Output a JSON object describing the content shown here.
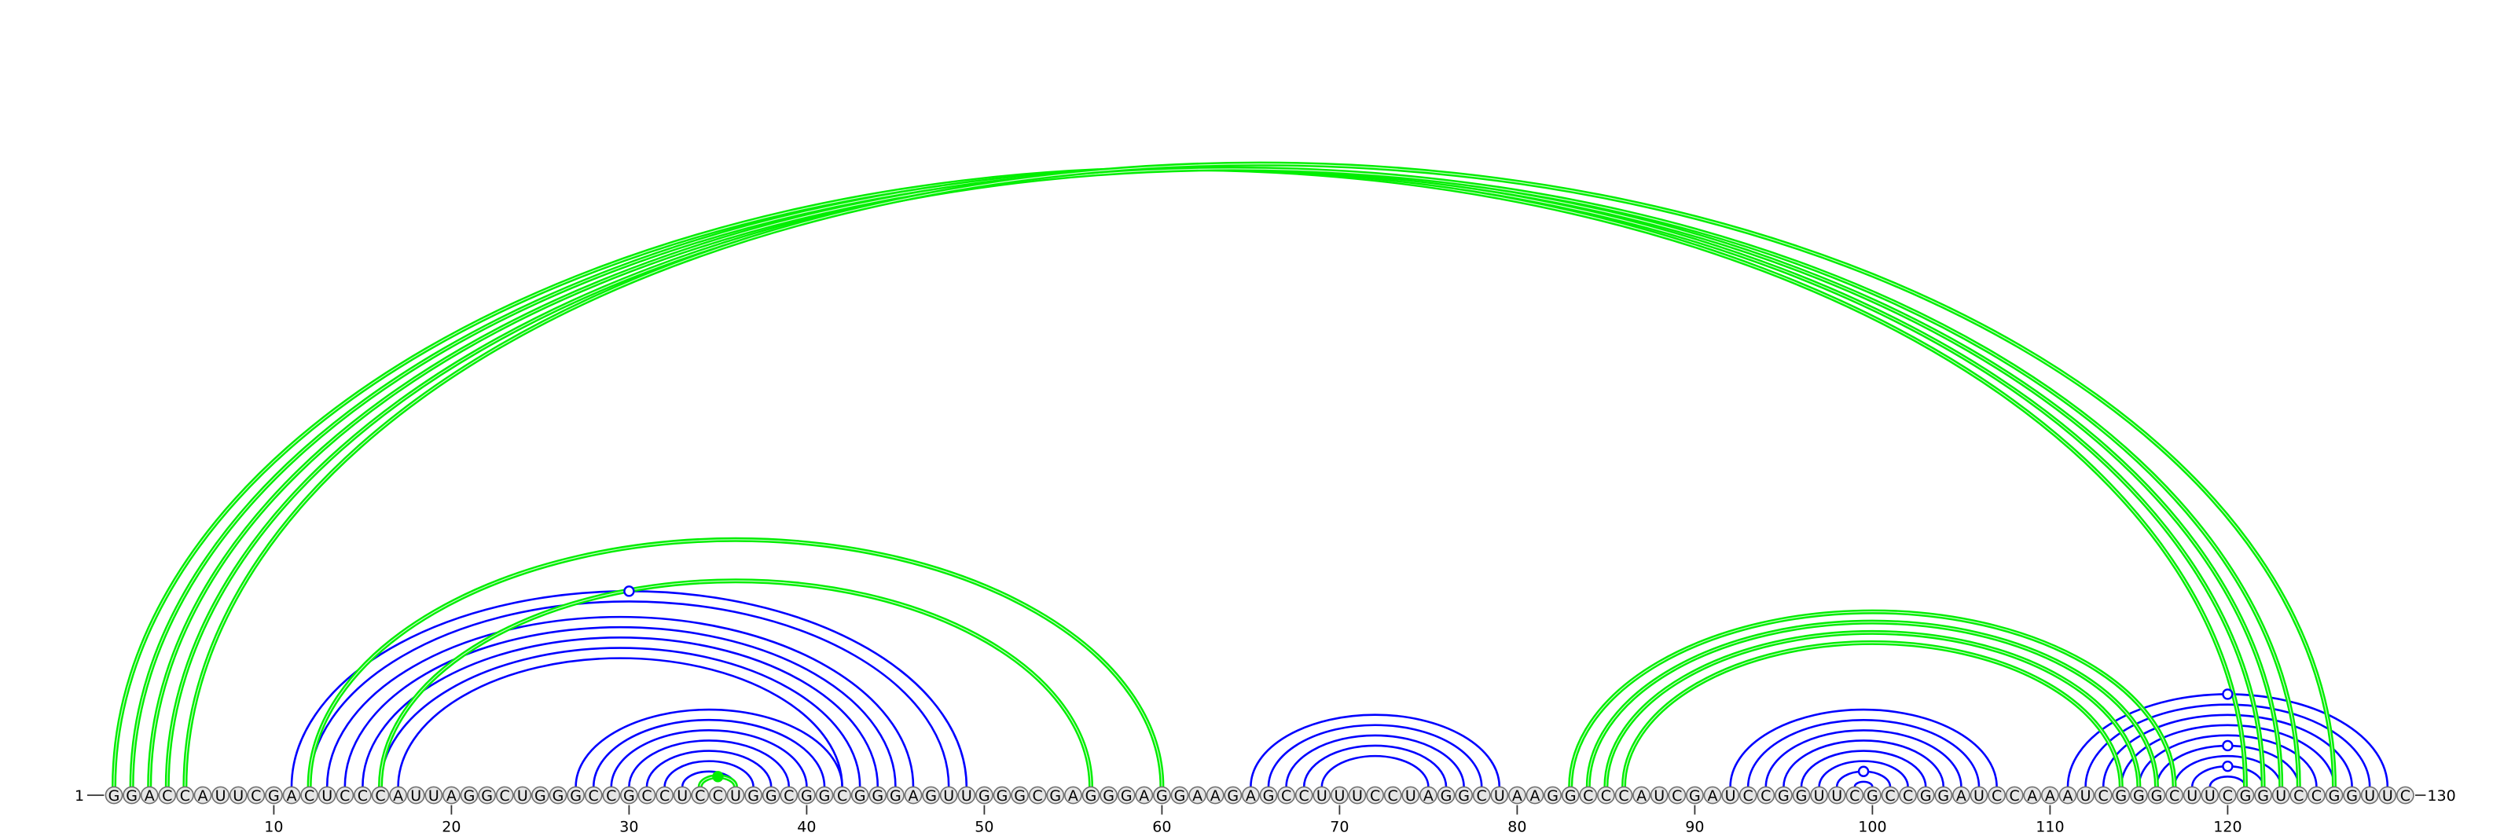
{
  "sequence": "GGACCAUUCGACUCCCAUUAGGCUGGGCCGCCUCCUGGCGGCGGGAGUUGGGCGAGGGAGGAAGAGCCUUUCCUAGGCUAAGGCCCAUCGAUCCGGUUCGCCGGAUCCAAAUCGGGCUUCGGUCCGGUUC",
  "start_label": "1",
  "end_label": "130",
  "axis_ticks": [
    "10",
    "20",
    "30",
    "40",
    "50",
    "60",
    "70",
    "80",
    "90",
    "100",
    "110",
    "120"
  ],
  "colors": {
    "arc_blue": "#0000ff",
    "arc_green": "#00ee00",
    "node_fill": "#e6e6e6",
    "node_stroke": "#707070",
    "text": "#000000"
  },
  "arcs": [
    {
      "i": 1,
      "j": 121,
      "color": "green"
    },
    {
      "i": 2,
      "j": 122,
      "color": "green"
    },
    {
      "i": 3,
      "j": 123,
      "color": "green"
    },
    {
      "i": 4,
      "j": 124,
      "color": "green"
    },
    {
      "i": 5,
      "j": 126,
      "color": "green"
    },
    {
      "i": 12,
      "j": 60,
      "color": "green"
    },
    {
      "i": 16,
      "j": 56,
      "color": "green"
    },
    {
      "i": 34,
      "j": 36,
      "color": "green"
    },
    {
      "i": 83,
      "j": 117,
      "color": "green"
    },
    {
      "i": 84,
      "j": 116,
      "color": "green"
    },
    {
      "i": 85,
      "j": 115,
      "color": "green"
    },
    {
      "i": 86,
      "j": 114,
      "color": "green"
    },
    {
      "i": 11,
      "j": 49,
      "color": "blue"
    },
    {
      "i": 12,
      "j": 48,
      "color": "blue"
    },
    {
      "i": 13,
      "j": 46,
      "color": "blue"
    },
    {
      "i": 14,
      "j": 45,
      "color": "blue"
    },
    {
      "i": 15,
      "j": 44,
      "color": "blue"
    },
    {
      "i": 16,
      "j": 43,
      "color": "blue"
    },
    {
      "i": 17,
      "j": 42,
      "color": "blue"
    },
    {
      "i": 27,
      "j": 42,
      "color": "blue"
    },
    {
      "i": 28,
      "j": 41,
      "color": "blue"
    },
    {
      "i": 29,
      "j": 40,
      "color": "blue"
    },
    {
      "i": 30,
      "j": 39,
      "color": "blue"
    },
    {
      "i": 31,
      "j": 38,
      "color": "blue"
    },
    {
      "i": 32,
      "j": 37,
      "color": "blue"
    },
    {
      "i": 33,
      "j": 36,
      "color": "blue"
    },
    {
      "i": 65,
      "j": 79,
      "color": "blue"
    },
    {
      "i": 66,
      "j": 78,
      "color": "blue"
    },
    {
      "i": 67,
      "j": 77,
      "color": "blue"
    },
    {
      "i": 68,
      "j": 76,
      "color": "blue"
    },
    {
      "i": 69,
      "j": 75,
      "color": "blue"
    },
    {
      "i": 92,
      "j": 107,
      "color": "blue"
    },
    {
      "i": 93,
      "j": 106,
      "color": "blue"
    },
    {
      "i": 94,
      "j": 105,
      "color": "blue"
    },
    {
      "i": 95,
      "j": 104,
      "color": "blue"
    },
    {
      "i": 96,
      "j": 103,
      "color": "blue"
    },
    {
      "i": 97,
      "j": 102,
      "color": "blue"
    },
    {
      "i": 98,
      "j": 101,
      "color": "blue"
    },
    {
      "i": 99,
      "j": 100,
      "color": "blue"
    },
    {
      "i": 111,
      "j": 129,
      "color": "blue"
    },
    {
      "i": 112,
      "j": 128,
      "color": "blue"
    },
    {
      "i": 113,
      "j": 127,
      "color": "blue"
    },
    {
      "i": 114,
      "j": 126,
      "color": "blue"
    },
    {
      "i": 115,
      "j": 125,
      "color": "blue"
    },
    {
      "i": 116,
      "j": 124,
      "color": "blue"
    },
    {
      "i": 117,
      "j": 123,
      "color": "blue"
    },
    {
      "i": 118,
      "j": 122,
      "color": "blue"
    },
    {
      "i": 119,
      "j": 121,
      "color": "blue"
    }
  ]
}
